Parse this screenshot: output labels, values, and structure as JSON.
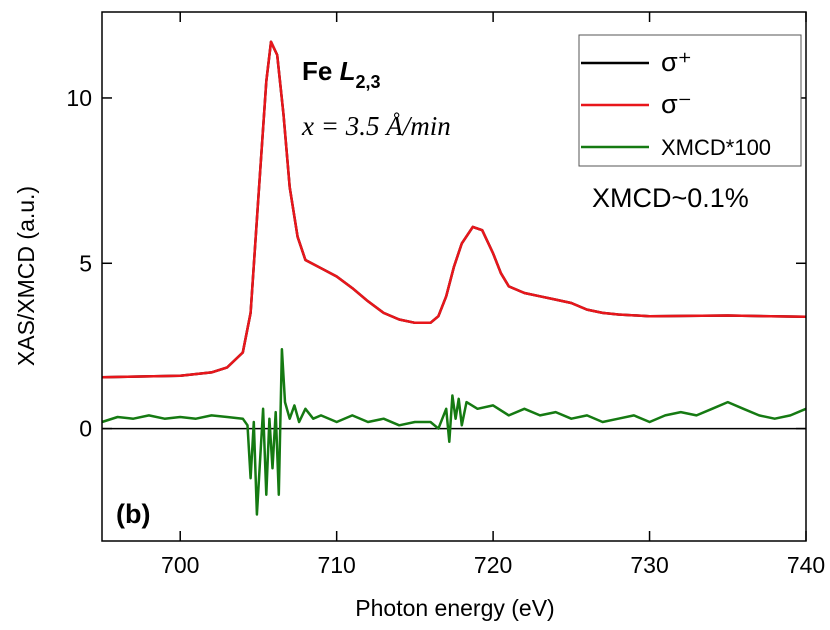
{
  "chart_data": {
    "type": "line",
    "x_label": "Photon energy (eV)",
    "y_label": "XAS/XMCD (a.u.)",
    "xlim": [
      695,
      740
    ],
    "xticks": [
      700,
      710,
      720,
      730,
      740
    ],
    "ylim": [
      -3.4,
      12.6
    ],
    "yticks": [
      0,
      5,
      10
    ],
    "legend": "upper right",
    "zero_line": true,
    "annotations": {
      "element": "Fe",
      "edge": "L",
      "edge_subscript": "2,3",
      "rate": "x = 3.5 Å/min",
      "xmcd_note": "XMCD~0.1%",
      "panel": "(b)"
    },
    "series": [
      {
        "name": "σ⁺",
        "color": "#000000",
        "x": [
          695,
          700,
          702,
          703,
          704,
          704.5,
          705,
          705.5,
          705.8,
          706.2,
          706.6,
          707,
          707.5,
          708,
          709,
          710,
          711,
          712,
          713,
          714,
          715,
          716,
          716.5,
          717,
          717.5,
          718,
          718.7,
          719.3,
          720,
          720.5,
          721,
          722,
          723,
          724,
          725,
          726,
          727,
          728,
          730,
          735,
          740
        ],
        "values": [
          1.55,
          1.6,
          1.7,
          1.85,
          2.3,
          3.5,
          7,
          10.5,
          11.7,
          11.3,
          9.5,
          7.3,
          5.8,
          5.1,
          4.85,
          4.6,
          4.25,
          3.85,
          3.5,
          3.3,
          3.2,
          3.2,
          3.4,
          4.0,
          4.9,
          5.6,
          6.1,
          6.0,
          5.3,
          4.7,
          4.3,
          4.1,
          4.0,
          3.9,
          3.8,
          3.6,
          3.5,
          3.45,
          3.4,
          3.42,
          3.38
        ]
      },
      {
        "name": "σ⁻",
        "color": "#e8161b",
        "x": [
          695,
          700,
          702,
          703,
          704,
          704.5,
          705,
          705.5,
          705.8,
          706.2,
          706.6,
          707,
          707.5,
          708,
          709,
          710,
          711,
          712,
          713,
          714,
          715,
          716,
          716.5,
          717,
          717.5,
          718,
          718.7,
          719.3,
          720,
          720.5,
          721,
          722,
          723,
          724,
          725,
          726,
          727,
          728,
          730,
          735,
          740
        ],
        "values": [
          1.55,
          1.6,
          1.7,
          1.85,
          2.3,
          3.5,
          7,
          10.5,
          11.7,
          11.3,
          9.5,
          7.3,
          5.8,
          5.1,
          4.85,
          4.6,
          4.25,
          3.85,
          3.5,
          3.3,
          3.2,
          3.2,
          3.4,
          4.0,
          4.9,
          5.6,
          6.1,
          6.0,
          5.3,
          4.7,
          4.3,
          4.1,
          4.0,
          3.9,
          3.8,
          3.6,
          3.5,
          3.45,
          3.4,
          3.42,
          3.38
        ]
      },
      {
        "name": "XMCD*100",
        "color": "#157a12",
        "x": [
          695,
          696,
          697,
          698,
          699,
          700,
          701,
          702,
          703,
          704,
          704.3,
          704.5,
          704.7,
          704.9,
          705.1,
          705.3,
          705.5,
          705.7,
          705.9,
          706.1,
          706.3,
          706.5,
          706.7,
          707,
          707.3,
          707.6,
          708,
          708.5,
          709,
          710,
          711,
          712,
          713,
          714,
          715,
          716,
          716.5,
          717,
          717.2,
          717.4,
          717.6,
          717.8,
          718,
          718.3,
          719,
          720,
          721,
          722,
          723,
          724,
          725,
          726,
          727,
          728,
          729,
          730,
          731,
          732,
          733,
          734,
          735,
          736,
          737,
          738,
          739,
          740
        ],
        "values": [
          0.2,
          0.35,
          0.3,
          0.4,
          0.3,
          0.35,
          0.3,
          0.4,
          0.35,
          0.3,
          0.1,
          -1.5,
          0.2,
          -2.6,
          -1.0,
          0.6,
          -2.0,
          0.3,
          -1.2,
          0.5,
          -2.0,
          2.4,
          0.8,
          0.3,
          0.7,
          0.2,
          0.6,
          0.3,
          0.4,
          0.2,
          0.4,
          0.2,
          0.3,
          0.1,
          0.2,
          0.2,
          0.0,
          0.6,
          -0.4,
          1.0,
          0.3,
          0.9,
          0.1,
          0.8,
          0.6,
          0.7,
          0.4,
          0.6,
          0.4,
          0.5,
          0.3,
          0.4,
          0.2,
          0.3,
          0.4,
          0.2,
          0.4,
          0.5,
          0.4,
          0.6,
          0.8,
          0.6,
          0.4,
          0.3,
          0.4,
          0.6
        ]
      }
    ]
  }
}
